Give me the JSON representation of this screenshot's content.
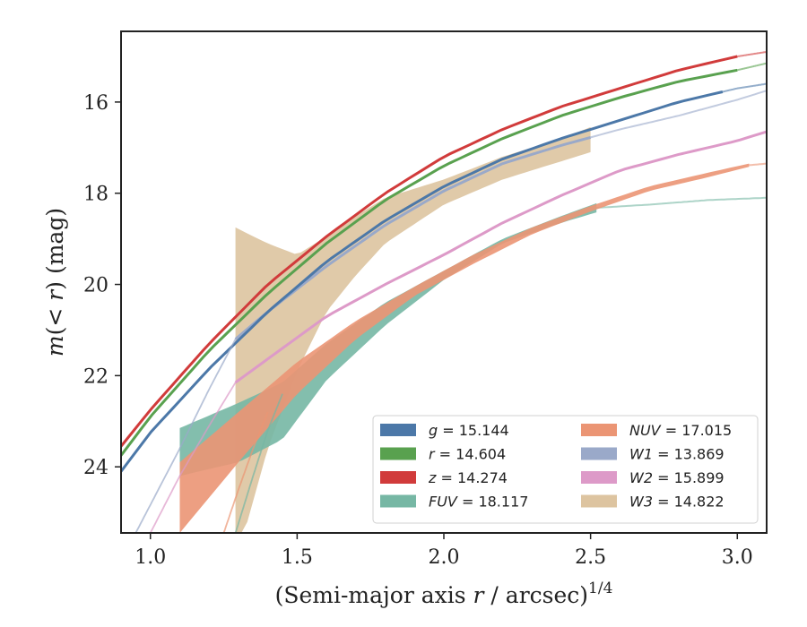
{
  "chart_data": {
    "type": "line",
    "xlabel_main": "(Semi-major axis ",
    "xlabel_var": "r",
    "xlabel_tail": " / arcsec)",
    "xlabel_sup": "1/4",
    "ylabel_pre": "m(< ",
    "ylabel_var": "r",
    "ylabel_post": ") (mag)",
    "xlim": [
      0.9,
      3.1
    ],
    "ylim": [
      25.45,
      14.45
    ],
    "xticks": [
      1.0,
      1.5,
      2.0,
      2.5,
      3.0
    ],
    "xtick_labels": [
      "1.0",
      "1.5",
      "2.0",
      "2.5",
      "3.0"
    ],
    "yticks": [
      16,
      18,
      20,
      22,
      24
    ],
    "ytick_labels": [
      "16",
      "18",
      "20",
      "22",
      "24"
    ],
    "grid": false,
    "legend_position": "lower-right",
    "legend_columns": 2,
    "series": [
      {
        "name": "g",
        "label_value": "= 15.144",
        "color": "#4c78a8",
        "solid_end": 2.95,
        "x": [
          0.9,
          1.0,
          1.2,
          1.4,
          1.6,
          1.8,
          2.0,
          2.2,
          2.4,
          2.6,
          2.8,
          3.0,
          3.1
        ],
        "y": [
          24.1,
          23.25,
          21.85,
          20.6,
          19.5,
          18.6,
          17.85,
          17.25,
          16.8,
          16.4,
          16.0,
          15.7,
          15.6
        ]
      },
      {
        "name": "r",
        "label_value": "= 14.604",
        "color": "#59a14f",
        "solid_end": 3.0,
        "x": [
          0.9,
          1.0,
          1.2,
          1.4,
          1.6,
          1.8,
          2.0,
          2.2,
          2.4,
          2.6,
          2.8,
          3.0,
          3.1
        ],
        "y": [
          23.75,
          22.9,
          21.45,
          20.2,
          19.1,
          18.15,
          17.4,
          16.8,
          16.3,
          15.9,
          15.55,
          15.3,
          15.15
        ]
      },
      {
        "name": "z",
        "label_value": "= 14.274",
        "color": "#d13b3b",
        "solid_end": 3.0,
        "x": [
          0.9,
          1.0,
          1.2,
          1.4,
          1.6,
          1.8,
          2.0,
          2.2,
          2.4,
          2.6,
          2.8,
          3.0,
          3.1
        ],
        "y": [
          23.55,
          22.75,
          21.3,
          20.0,
          18.95,
          18.0,
          17.2,
          16.6,
          16.1,
          15.7,
          15.3,
          15.0,
          14.9
        ]
      },
      {
        "name": "FUV",
        "label_value": "= 18.117",
        "color": "#76b7a4",
        "solid_start": 1.1,
        "solid_end": 2.52,
        "band": true,
        "x": [
          1.1,
          1.3,
          1.45,
          1.6,
          1.8,
          2.0,
          2.2,
          2.4,
          2.52,
          2.7,
          2.9,
          3.1
        ],
        "y_low": [
          24.2,
          23.9,
          23.4,
          22.1,
          20.9,
          19.9,
          19.1,
          18.65,
          18.42,
          18.25,
          18.15,
          18.1
        ],
        "y_high": [
          23.15,
          22.6,
          22.15,
          21.3,
          20.4,
          19.7,
          19.0,
          18.5,
          18.22,
          18.25,
          18.15,
          18.1
        ]
      },
      {
        "name": "NUV",
        "label_value": "= 17.015",
        "color": "#eb9574",
        "solid_start": 1.1,
        "solid_end": 3.04,
        "band": true,
        "x": [
          1.1,
          1.3,
          1.5,
          1.7,
          1.9,
          2.1,
          2.3,
          2.5,
          2.7,
          2.9,
          3.04,
          3.1
        ],
        "y_low": [
          25.45,
          23.9,
          22.4,
          21.2,
          20.25,
          19.55,
          18.9,
          18.4,
          17.95,
          17.65,
          17.42,
          17.35
        ],
        "y_high": [
          23.9,
          22.8,
          21.7,
          20.8,
          20.05,
          19.35,
          18.75,
          18.28,
          17.85,
          17.55,
          17.35,
          17.35
        ]
      },
      {
        "name": "W1",
        "label_value": "= 13.869",
        "color": "#9aa9c9",
        "solid_start": 1.29,
        "solid_end": 2.5,
        "x": [
          1.29,
          1.4,
          1.6,
          1.8,
          2.0,
          2.2,
          2.4,
          2.6,
          2.8,
          3.0,
          3.1
        ],
        "y": [
          21.2,
          20.6,
          19.6,
          18.7,
          17.95,
          17.35,
          16.95,
          16.6,
          16.3,
          15.95,
          15.75
        ]
      },
      {
        "name": "W2",
        "label_value": "= 15.899",
        "color": "#dd9ac8",
        "solid_start": 1.29,
        "solid_end": 3.1,
        "x": [
          1.29,
          1.45,
          1.6,
          1.8,
          2.0,
          2.2,
          2.4,
          2.6,
          2.8,
          3.0,
          3.1
        ],
        "y": [
          22.15,
          21.4,
          20.7,
          20.0,
          19.35,
          18.65,
          18.05,
          17.5,
          17.15,
          16.85,
          16.65
        ]
      },
      {
        "name": "W3",
        "label_value": "= 14.822",
        "color": "#ddc4a0",
        "solid_start": 1.29,
        "solid_end": 2.5,
        "band": true,
        "x": [
          1.29,
          1.32,
          1.4,
          1.5,
          1.6,
          1.7,
          1.8,
          2.0,
          2.2,
          2.4,
          2.5
        ],
        "y_low": [
          25.45,
          25.45,
          23.6,
          21.9,
          20.6,
          19.8,
          19.1,
          18.25,
          17.7,
          17.3,
          17.1
        ],
        "y_high": [
          18.75,
          18.85,
          19.1,
          19.35,
          18.95,
          18.5,
          18.1,
          17.7,
          17.2,
          16.8,
          16.55
        ]
      }
    ]
  }
}
